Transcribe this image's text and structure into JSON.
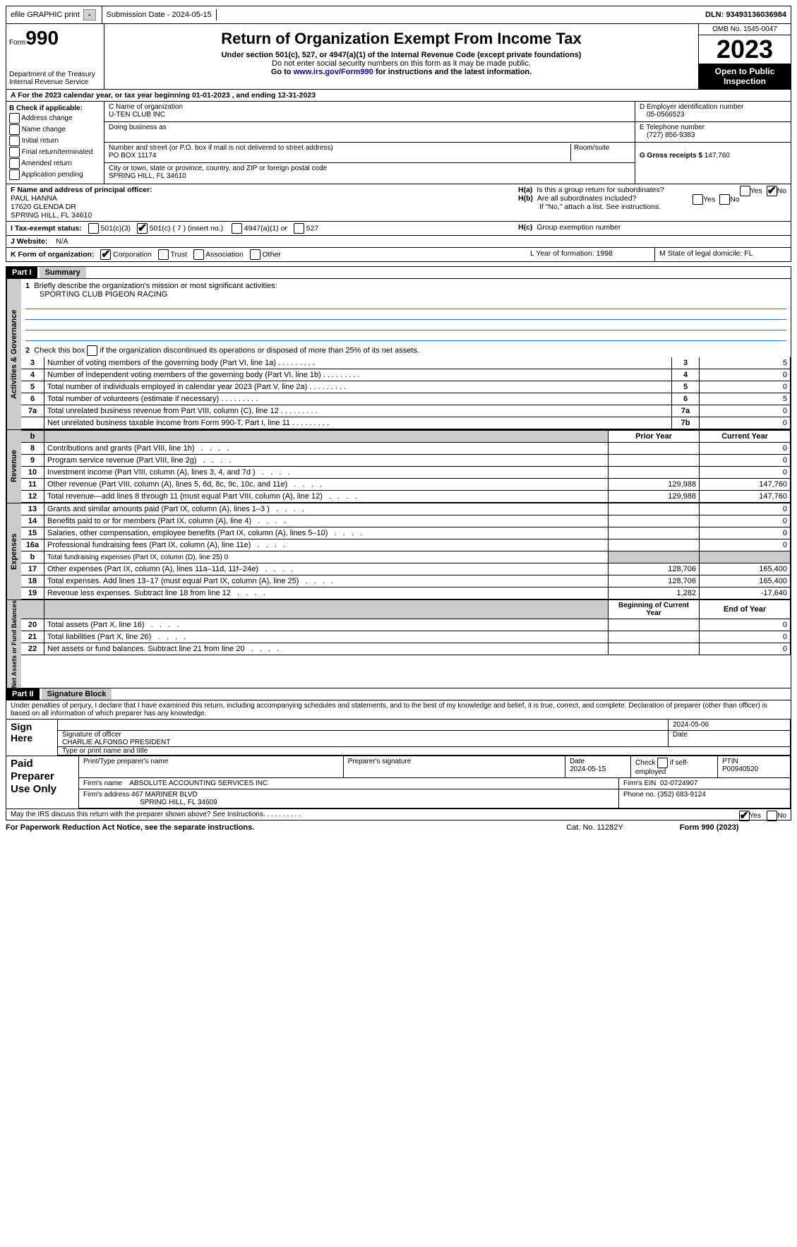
{
  "topbar": {
    "efile": "efile GRAPHIC print",
    "submission": "Submission Date - 2024-05-15",
    "dln": "DLN: 93493136036984"
  },
  "header": {
    "form_label": "Form",
    "form_no": "990",
    "dept": "Department of the Treasury\nInternal Revenue Service",
    "title": "Return of Organization Exempt From Income Tax",
    "sub1": "Under section 501(c), 527, or 4947(a)(1) of the Internal Revenue Code (except private foundations)",
    "sub2": "Do not enter social security numbers on this form as it may be made public.",
    "sub3_pre": "Go to ",
    "sub3_link": "www.irs.gov/Form990",
    "sub3_post": " for instructions and the latest information.",
    "omb": "OMB No. 1545-0047",
    "year": "2023",
    "open": "Open to Public Inspection"
  },
  "rowA": "A For the 2023 calendar year, or tax year beginning 01-01-2023   , and ending 12-31-2023",
  "colB": {
    "title": "B Check if applicable:",
    "opts": [
      "Address change",
      "Name change",
      "Initial return",
      "Final return/terminated",
      "Amended return",
      "Application pending"
    ]
  },
  "colC": {
    "c_label": "C Name of organization",
    "c_val": "U-TEN CLUB INC",
    "dba": "Doing business as",
    "addr_label": "Number and street (or P.O. box if mail is not delivered to street address)",
    "room": "Room/suite",
    "addr_val": "PO BOX 11174",
    "city_label": "City or town, state or province, country, and ZIP or foreign postal code",
    "city_val": "SPRING HILL, FL  34610",
    "f_label": "F Name and address of principal officer:",
    "f_name": "PAUL HANNA",
    "f_addr1": "17620 GLENDA DR",
    "f_addr2": "SPRING HILL, FL  34610"
  },
  "colD": {
    "d_label": "D Employer identification number",
    "d_val": "05-0566523",
    "e_label": "E Telephone number",
    "e_val": "(727) 856-9383",
    "g_label": "G Gross receipts $",
    "g_val": "147,760"
  },
  "rowH": {
    "ha": "H(a)  Is this a group return for subordinates?",
    "hb": "H(b)  Are all subordinates included?",
    "hb_note": "If \"No,\" attach a list. See instructions.",
    "hc": "H(c)  Group exemption number",
    "yes": "Yes",
    "no": "No"
  },
  "rowI": {
    "label": "I   Tax-exempt status:",
    "o1": "501(c)(3)",
    "o2": "501(c) ( 7 ) (insert no.)",
    "o3": "4947(a)(1) or",
    "o4": "527"
  },
  "rowJ": {
    "label": "J   Website:",
    "val": "N/A"
  },
  "rowK": {
    "label": "K Form of organization:",
    "o1": "Corporation",
    "o2": "Trust",
    "o3": "Association",
    "o4": "Other",
    "l": "L Year of formation: 1998",
    "m": "M State of legal domicile: FL"
  },
  "part1": {
    "hdr": "Part I",
    "title": "Summary"
  },
  "summary": {
    "l1": "Briefly describe the organization's mission or most significant activities:",
    "l1v": "SPORTING CLUB PIGEON RACING",
    "l2": "Check this box        if the organization discontinued its operations or disposed of more than 25% of its net assets.",
    "rows_gov": [
      {
        "n": "3",
        "t": "Number of voting members of the governing body (Part VI, line 1a)",
        "b": "3",
        "v": "5"
      },
      {
        "n": "4",
        "t": "Number of independent voting members of the governing body (Part VI, line 1b)",
        "b": "4",
        "v": "0"
      },
      {
        "n": "5",
        "t": "Total number of individuals employed in calendar year 2023 (Part V, line 2a)",
        "b": "5",
        "v": "0"
      },
      {
        "n": "6",
        "t": "Total number of volunteers (estimate if necessary)",
        "b": "6",
        "v": "5"
      },
      {
        "n": "7a",
        "t": "Total unrelated business revenue from Part VIII, column (C), line 12",
        "b": "7a",
        "v": "0"
      },
      {
        "n": "",
        "t": "Net unrelated business taxable income from Form 990-T, Part I, line 11",
        "b": "7b",
        "v": "0"
      }
    ],
    "col_prior": "Prior Year",
    "col_curr": "Current Year",
    "rows_rev": [
      {
        "n": "8",
        "t": "Contributions and grants (Part VIII, line 1h)",
        "p": "",
        "c": "0"
      },
      {
        "n": "9",
        "t": "Program service revenue (Part VIII, line 2g)",
        "p": "",
        "c": "0"
      },
      {
        "n": "10",
        "t": "Investment income (Part VIII, column (A), lines 3, 4, and 7d )",
        "p": "",
        "c": "0"
      },
      {
        "n": "11",
        "t": "Other revenue (Part VIII, column (A), lines 5, 6d, 8c, 9c, 10c, and 11e)",
        "p": "129,988",
        "c": "147,760"
      },
      {
        "n": "12",
        "t": "Total revenue—add lines 8 through 11 (must equal Part VIII, column (A), line 12)",
        "p": "129,988",
        "c": "147,760"
      }
    ],
    "rows_exp": [
      {
        "n": "13",
        "t": "Grants and similar amounts paid (Part IX, column (A), lines 1–3 )",
        "p": "",
        "c": "0"
      },
      {
        "n": "14",
        "t": "Benefits paid to or for members (Part IX, column (A), line 4)",
        "p": "",
        "c": "0"
      },
      {
        "n": "15",
        "t": "Salaries, other compensation, employee benefits (Part IX, column (A), lines 5–10)",
        "p": "",
        "c": "0"
      },
      {
        "n": "16a",
        "t": "Professional fundraising fees (Part IX, column (A), line 11e)",
        "p": "",
        "c": "0"
      },
      {
        "n": "b",
        "t": "Total fundraising expenses (Part IX, column (D), line 25) 0",
        "p": "shade",
        "c": "shade"
      },
      {
        "n": "17",
        "t": "Other expenses (Part IX, column (A), lines 11a–11d, 11f–24e)",
        "p": "128,706",
        "c": "165,400"
      },
      {
        "n": "18",
        "t": "Total expenses. Add lines 13–17 (must equal Part IX, column (A), line 25)",
        "p": "128,706",
        "c": "165,400"
      },
      {
        "n": "19",
        "t": "Revenue less expenses. Subtract line 18 from line 12",
        "p": "1,282",
        "c": "-17,640"
      }
    ],
    "col_beg": "Beginning of Current Year",
    "col_end": "End of Year",
    "rows_net": [
      {
        "n": "20",
        "t": "Total assets (Part X, line 16)",
        "p": "",
        "c": "0"
      },
      {
        "n": "21",
        "t": "Total liabilities (Part X, line 26)",
        "p": "",
        "c": "0"
      },
      {
        "n": "22",
        "t": "Net assets or fund balances. Subtract line 21 from line 20",
        "p": "",
        "c": "0"
      }
    ],
    "tab_gov": "Activities & Governance",
    "tab_rev": "Revenue",
    "tab_exp": "Expenses",
    "tab_net": "Net Assets or Fund Balances"
  },
  "part2": {
    "hdr": "Part II",
    "title": "Signature Block"
  },
  "sig": {
    "penalty": "Under penalties of perjury, I declare that I have examined this return, including accompanying schedules and statements, and to the best of my knowledge and belief, it is true, correct, and complete. Declaration of preparer (other than officer) is based on all information of which preparer has any knowledge.",
    "sign_here": "Sign Here",
    "sig_officer": "Signature of officer",
    "officer_name": "CHARLIE ALFONSO  PRESIDENT",
    "type_name": "Type or print name and title",
    "date": "Date",
    "date_top": "2024-05-06",
    "paid": "Paid Preparer Use Only",
    "prep_name_lbl": "Print/Type preparer's name",
    "prep_sig_lbl": "Preparer's signature",
    "prep_date": "2024-05-15",
    "check_lbl": "Check        if self-employed",
    "ptin_lbl": "PTIN",
    "ptin": "P00940520",
    "firm_name_lbl": "Firm's name",
    "firm_name": "ABSOLUTE ACCOUNTING SERVICES INC",
    "firm_ein_lbl": "Firm's EIN",
    "firm_ein": "02-0724907",
    "firm_addr_lbl": "Firm's address",
    "firm_addr1": "467 MARINER BLVD",
    "firm_addr2": "SPRING HILL, FL  34609",
    "phone_lbl": "Phone no.",
    "phone": "(352) 683-9124",
    "may": "May the IRS discuss this return with the preparer shown above? See Instructions."
  },
  "footer": {
    "l": "For Paperwork Reduction Act Notice, see the separate instructions.",
    "m": "Cat. No. 11282Y",
    "r": "Form 990 (2023)"
  },
  "dots": "   .    .    .    .    .    .    .    .    ."
}
